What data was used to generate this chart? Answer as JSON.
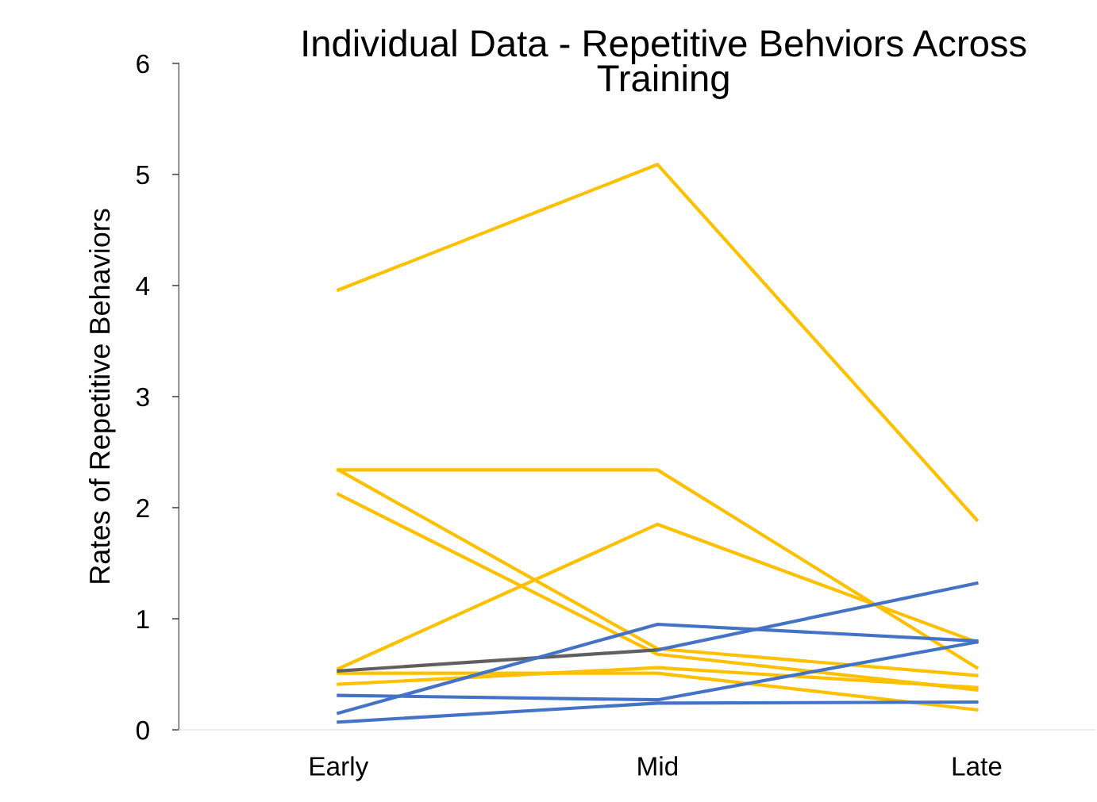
{
  "chart_data": {
    "type": "line",
    "title": "Individual Data - Repetitive Behviors Across\nTraining",
    "ylabel": "Rates of Repetitive Behaviors",
    "categories": [
      "Early",
      "Mid",
      "Late"
    ],
    "series": [
      {
        "color": "#ffc000",
        "values": [
          3.96,
          5.09,
          1.89
        ]
      },
      {
        "color": "#ffc000",
        "values": [
          2.34,
          2.34,
          0.56
        ]
      },
      {
        "color": "#ffc000",
        "values": [
          0.55,
          1.85,
          0.79
        ]
      },
      {
        "color": "#ffc000",
        "values": [
          2.34,
          0.73,
          0.49
        ]
      },
      {
        "color": "#ffc000",
        "values": [
          2.12,
          0.68,
          0.36
        ]
      },
      {
        "color": "#ffc000",
        "values": [
          0.51,
          0.51,
          0.18
        ]
      },
      {
        "color": "#ffc000",
        "values": [
          0.41,
          0.56,
          0.38
        ]
      },
      {
        "color": "#5f5f5f",
        "values": [
          0.53,
          0.72,
          null
        ]
      },
      {
        "color": "#4472c4",
        "values": [
          0.15,
          0.95,
          0.8
        ]
      },
      {
        "color": "#4472c4",
        "values": [
          0.31,
          0.27,
          0.79
        ]
      },
      {
        "color": "#4472c4",
        "values": [
          0.07,
          0.24,
          0.25
        ]
      },
      {
        "color": "#4472c4",
        "values": [
          null,
          0.72,
          1.32
        ]
      }
    ],
    "ylim": [
      0,
      6
    ],
    "yticks": [
      0,
      1,
      2,
      3,
      4,
      5,
      6
    ],
    "grid": false,
    "marker": "none",
    "line_style": "solid"
  }
}
